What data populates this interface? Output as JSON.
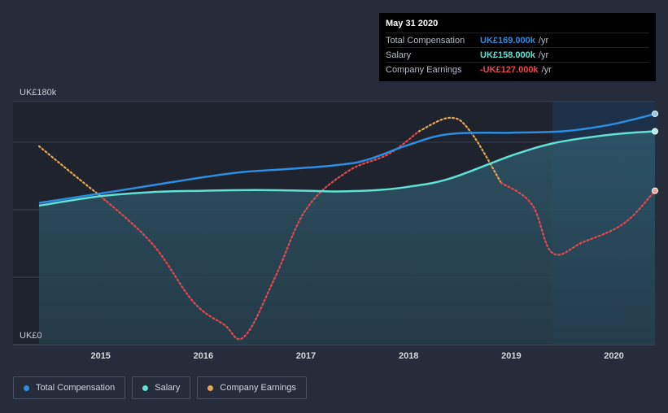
{
  "chart_data": {
    "type": "area",
    "title": "",
    "xlabel": "",
    "ylabel": "",
    "ylim": [
      0,
      180
    ],
    "y_unit": "k",
    "y_axis_labels": [
      "UK£180k",
      "UK£0"
    ],
    "x_ticks": [
      "2015",
      "2016",
      "2017",
      "2018",
      "2019",
      "2020"
    ],
    "x_range": [
      2014.4,
      2020.4
    ],
    "forecast_start": 2019.4,
    "series": [
      {
        "name": "Total Compensation",
        "color": "#2d8de0",
        "points": [
          [
            2014.4,
            105
          ],
          [
            2015.0,
            112
          ],
          [
            2015.5,
            118
          ],
          [
            2016.0,
            124
          ],
          [
            2016.4,
            128
          ],
          [
            2016.8,
            130
          ],
          [
            2017.3,
            133
          ],
          [
            2017.6,
            137
          ],
          [
            2018.0,
            148
          ],
          [
            2018.4,
            156
          ],
          [
            2019.0,
            157
          ],
          [
            2019.5,
            158
          ],
          [
            2019.9,
            162
          ],
          [
            2020.2,
            167
          ],
          [
            2020.4,
            171
          ]
        ]
      },
      {
        "name": "Salary",
        "color": "#61e0d6",
        "points": [
          [
            2014.4,
            103
          ],
          [
            2015.0,
            110
          ],
          [
            2015.5,
            113
          ],
          [
            2016.0,
            114
          ],
          [
            2016.5,
            114.5
          ],
          [
            2017.0,
            114
          ],
          [
            2017.3,
            113.5
          ],
          [
            2017.7,
            114.5
          ],
          [
            2018.0,
            117
          ],
          [
            2018.4,
            123
          ],
          [
            2019.0,
            140
          ],
          [
            2019.4,
            149
          ],
          [
            2019.8,
            154
          ],
          [
            2020.1,
            156.5
          ],
          [
            2020.4,
            158
          ]
        ]
      },
      {
        "name": "Company Earnings",
        "color": "#e6a84f",
        "negative_color": "#e5484d",
        "points": [
          [
            2014.4,
            147
          ],
          [
            2014.8,
            122
          ],
          [
            2015.0,
            110
          ],
          [
            2015.5,
            75
          ],
          [
            2015.9,
            32
          ],
          [
            2016.2,
            15
          ],
          [
            2016.4,
            6
          ],
          [
            2016.7,
            50
          ],
          [
            2017.0,
            100
          ],
          [
            2017.4,
            128
          ],
          [
            2017.8,
            141
          ],
          [
            2018.1,
            158
          ],
          [
            2018.4,
            168
          ],
          [
            2018.6,
            158
          ],
          [
            2018.9,
            120
          ],
          [
            2019.2,
            104
          ],
          [
            2019.4,
            68
          ],
          [
            2019.7,
            76
          ],
          [
            2020.1,
            90
          ],
          [
            2020.4,
            114
          ]
        ]
      }
    ],
    "tooltip": {
      "date": "May 31 2020",
      "rows": [
        {
          "label": "Total Compensation",
          "value": "UK£169.000k",
          "unit": "/yr",
          "color": "#2d8de0"
        },
        {
          "label": "Salary",
          "value": "UK£158.000k",
          "unit": "/yr",
          "color": "#61e0d6"
        },
        {
          "label": "Company Earnings",
          "value": "-UK£127.000k",
          "unit": "/yr",
          "color": "#e5484d"
        }
      ]
    },
    "legend": [
      {
        "label": "Total Compensation",
        "color": "#2d8de0"
      },
      {
        "label": "Salary",
        "color": "#61e0d6"
      },
      {
        "label": "Company Earnings",
        "color": "#e6a84f"
      }
    ]
  }
}
